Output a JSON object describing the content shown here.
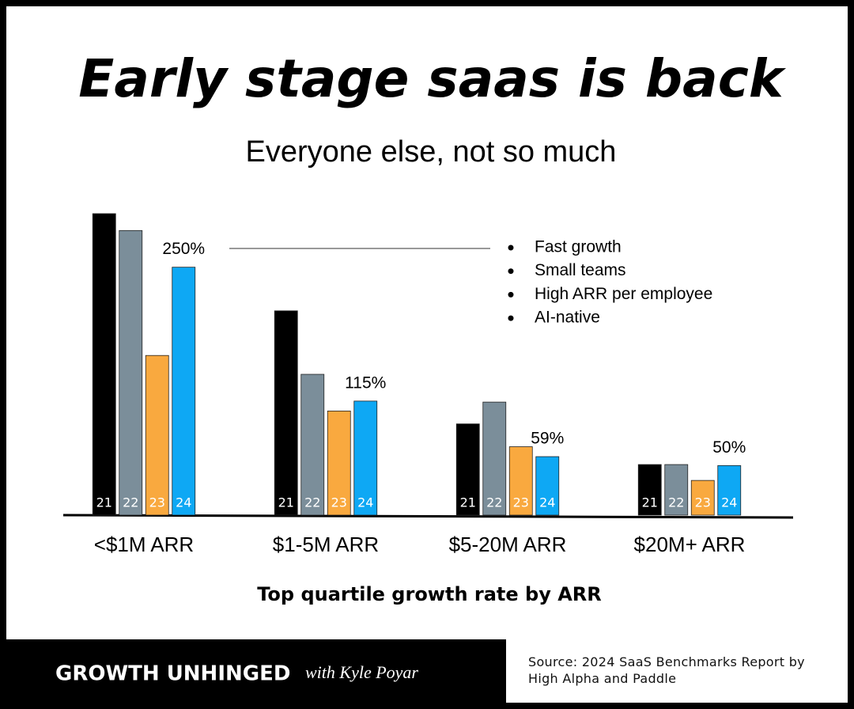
{
  "chart_data": {
    "type": "bar",
    "title": "Early stage saas is back",
    "subtitle": "Everyone else, not so much",
    "xlabel": "Top quartile growth rate by ARR",
    "categories": [
      "<$1M ARR",
      "$1-5M ARR",
      "$5-20M ARR",
      "$20M+ ARR"
    ],
    "series": [
      {
        "name": "21",
        "color": "#000000",
        "values": [
          304,
          206,
          92,
          51
        ]
      },
      {
        "name": "22",
        "color": "#7b8e9a",
        "values": [
          287,
          142,
          114,
          51
        ]
      },
      {
        "name": "23",
        "color": "#f9a93f",
        "values": [
          161,
          105,
          69,
          35
        ]
      },
      {
        "name": "24",
        "color": "#0ea8f4",
        "values": [
          250,
          115,
          59,
          50
        ],
        "value_labels": [
          "250%",
          "115%",
          "59%",
          "50%"
        ]
      }
    ],
    "annotations": [
      "Fast growth",
      "Small teams",
      "High ARR per employee",
      "AI-native"
    ],
    "footer": {
      "brand": "GROWTH UNHINGED",
      "byline": "with Kyle Poyar",
      "source": "Source: 2024 SaaS Benchmarks Report by High Alpha and Paddle"
    }
  }
}
